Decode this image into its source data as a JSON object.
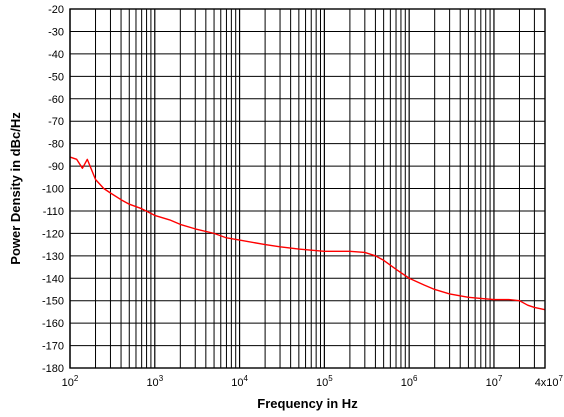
{
  "chart_data": {
    "type": "line",
    "title": "",
    "xlabel": "Frequency in Hz",
    "ylabel": "Power Density in dBc/Hz",
    "x_scale": "log",
    "xlim": [
      100,
      40000000
    ],
    "ylim": [
      -180,
      -20
    ],
    "y_ticks": [
      -20,
      -30,
      -40,
      -50,
      -60,
      -70,
      -80,
      -90,
      -100,
      -110,
      -120,
      -130,
      -140,
      -150,
      -160,
      -170,
      -180
    ],
    "x_ticks": [
      {
        "base": "10",
        "exp": "2"
      },
      {
        "base": "10",
        "exp": "3"
      },
      {
        "base": "10",
        "exp": "4"
      },
      {
        "base": "10",
        "exp": "5"
      },
      {
        "base": "10",
        "exp": "6"
      },
      {
        "base": "10",
        "exp": "7"
      },
      {
        "base": "4x10",
        "exp": "7"
      }
    ],
    "x_tick_values": [
      100,
      1000,
      10000,
      100000,
      1000000,
      10000000,
      40000000
    ],
    "grid": true,
    "series": [
      {
        "color": "#ff0000",
        "x": [
          100,
          120,
          140,
          160,
          200,
          250,
          300,
          400,
          500,
          700,
          1000,
          1500,
          2000,
          3000,
          5000,
          7000,
          10000,
          20000,
          30000,
          50000,
          70000,
          100000,
          150000,
          200000,
          300000,
          400000,
          500000,
          700000,
          1000000,
          1500000,
          2000000,
          3000000,
          5000000,
          7000000,
          10000000,
          15000000,
          20000000,
          25000000,
          30000000,
          40000000
        ],
        "y": [
          -86,
          -87,
          -91,
          -87,
          -96,
          -100,
          -102,
          -105,
          -107,
          -109,
          -112,
          -114,
          -116,
          -118,
          -120,
          -122,
          -123,
          -125,
          -126,
          -127,
          -127.5,
          -128,
          -128,
          -128,
          -128.5,
          -130,
          -132,
          -136,
          -140,
          -143,
          -145,
          -147,
          -148.5,
          -149,
          -149.5,
          -149.5,
          -150,
          -152,
          -153,
          -154
        ]
      }
    ]
  }
}
